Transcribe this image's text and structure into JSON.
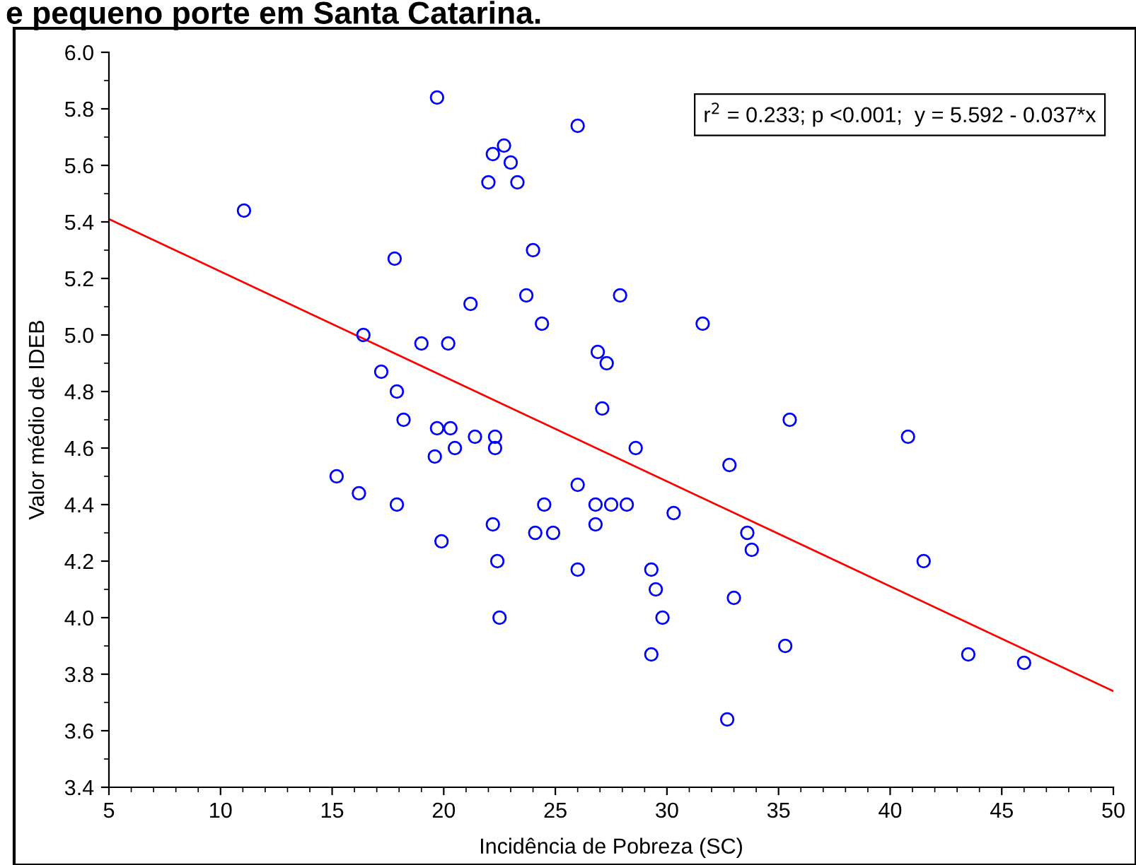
{
  "chart_data": {
    "type": "scatter",
    "title": "e pequeno porte em Santa Catarina.",
    "xlabel": "Incidência de Pobreza (SC)",
    "ylabel": "Valor médio de IDEB",
    "xlim": [
      5,
      50
    ],
    "xticks": [
      5,
      10,
      15,
      20,
      25,
      30,
      35,
      40,
      45,
      50
    ],
    "ylim": [
      3.4,
      6.0
    ],
    "yticks": [
      {
        "value": 3.4,
        "label": "3.4"
      },
      {
        "value": 3.6,
        "label": "3.6"
      },
      {
        "value": 3.8,
        "label": "3.8"
      },
      {
        "value": 4.0,
        "label": "4.0"
      },
      {
        "value": 4.2,
        "label": "4.2"
      },
      {
        "value": 4.4,
        "label": "4.4"
      },
      {
        "value": 4.6,
        "label": "4.6"
      },
      {
        "value": 4.8,
        "label": "4.8"
      },
      {
        "value": 5.0,
        "label": "5.0"
      },
      {
        "value": 5.2,
        "label": "5.2"
      },
      {
        "value": 5.4,
        "label": "5.4"
      },
      {
        "value": 5.6,
        "label": "5.6"
      },
      {
        "value": 5.8,
        "label": "5.8"
      },
      {
        "value": 6.0,
        "label": "6.0"
      }
    ],
    "grid": false,
    "annotations": [
      "r$^{2}$ = 0.233; p <0.001;  y = 5.592 - 0.037*x"
    ],
    "series": [
      {
        "marker": "circle",
        "color": "#0000ff",
        "x": [
          11.05,
          19.7,
          26.0,
          22.2,
          22.7,
          23.0,
          22.0,
          23.3,
          17.8,
          24.0,
          21.2,
          23.7,
          27.9,
          31.6,
          16.4,
          19.0,
          20.2,
          24.4,
          26.9,
          27.3,
          17.2,
          17.9,
          18.2,
          27.1,
          35.5,
          40.8,
          19.7,
          20.3,
          21.4,
          22.3,
          22.3,
          20.5,
          19.6,
          28.6,
          32.8,
          15.2,
          16.2,
          17.9,
          24.5,
          26.0,
          26.8,
          27.5,
          28.2,
          30.3,
          26.8,
          22.2,
          24.1,
          24.9,
          33.6,
          33.8,
          19.9,
          22.4,
          41.5,
          26.0,
          29.3,
          29.5,
          22.5,
          29.8,
          33.0,
          29.3,
          35.3,
          43.5,
          46.0,
          32.7
        ],
        "values": [
          5.44,
          5.84,
          5.74,
          5.64,
          5.67,
          5.61,
          5.54,
          5.54,
          5.27,
          5.3,
          5.11,
          5.14,
          5.14,
          5.04,
          5.0,
          4.97,
          4.97,
          5.04,
          4.94,
          4.9,
          4.87,
          4.8,
          4.7,
          4.74,
          4.7,
          4.64,
          4.67,
          4.67,
          4.64,
          4.64,
          4.6,
          4.6,
          4.57,
          4.6,
          4.54,
          4.5,
          4.44,
          4.4,
          4.4,
          4.47,
          4.4,
          4.4,
          4.4,
          4.37,
          4.33,
          4.33,
          4.3,
          4.3,
          4.3,
          4.24,
          4.27,
          4.2,
          4.2,
          4.17,
          4.17,
          4.1,
          4.0,
          4.0,
          4.07,
          3.87,
          3.9,
          3.87,
          3.84,
          3.64
        ]
      },
      {
        "type": "line",
        "color": "#ff0000",
        "x": [
          5,
          50
        ],
        "values": [
          5.41,
          3.74
        ]
      }
    ]
  }
}
